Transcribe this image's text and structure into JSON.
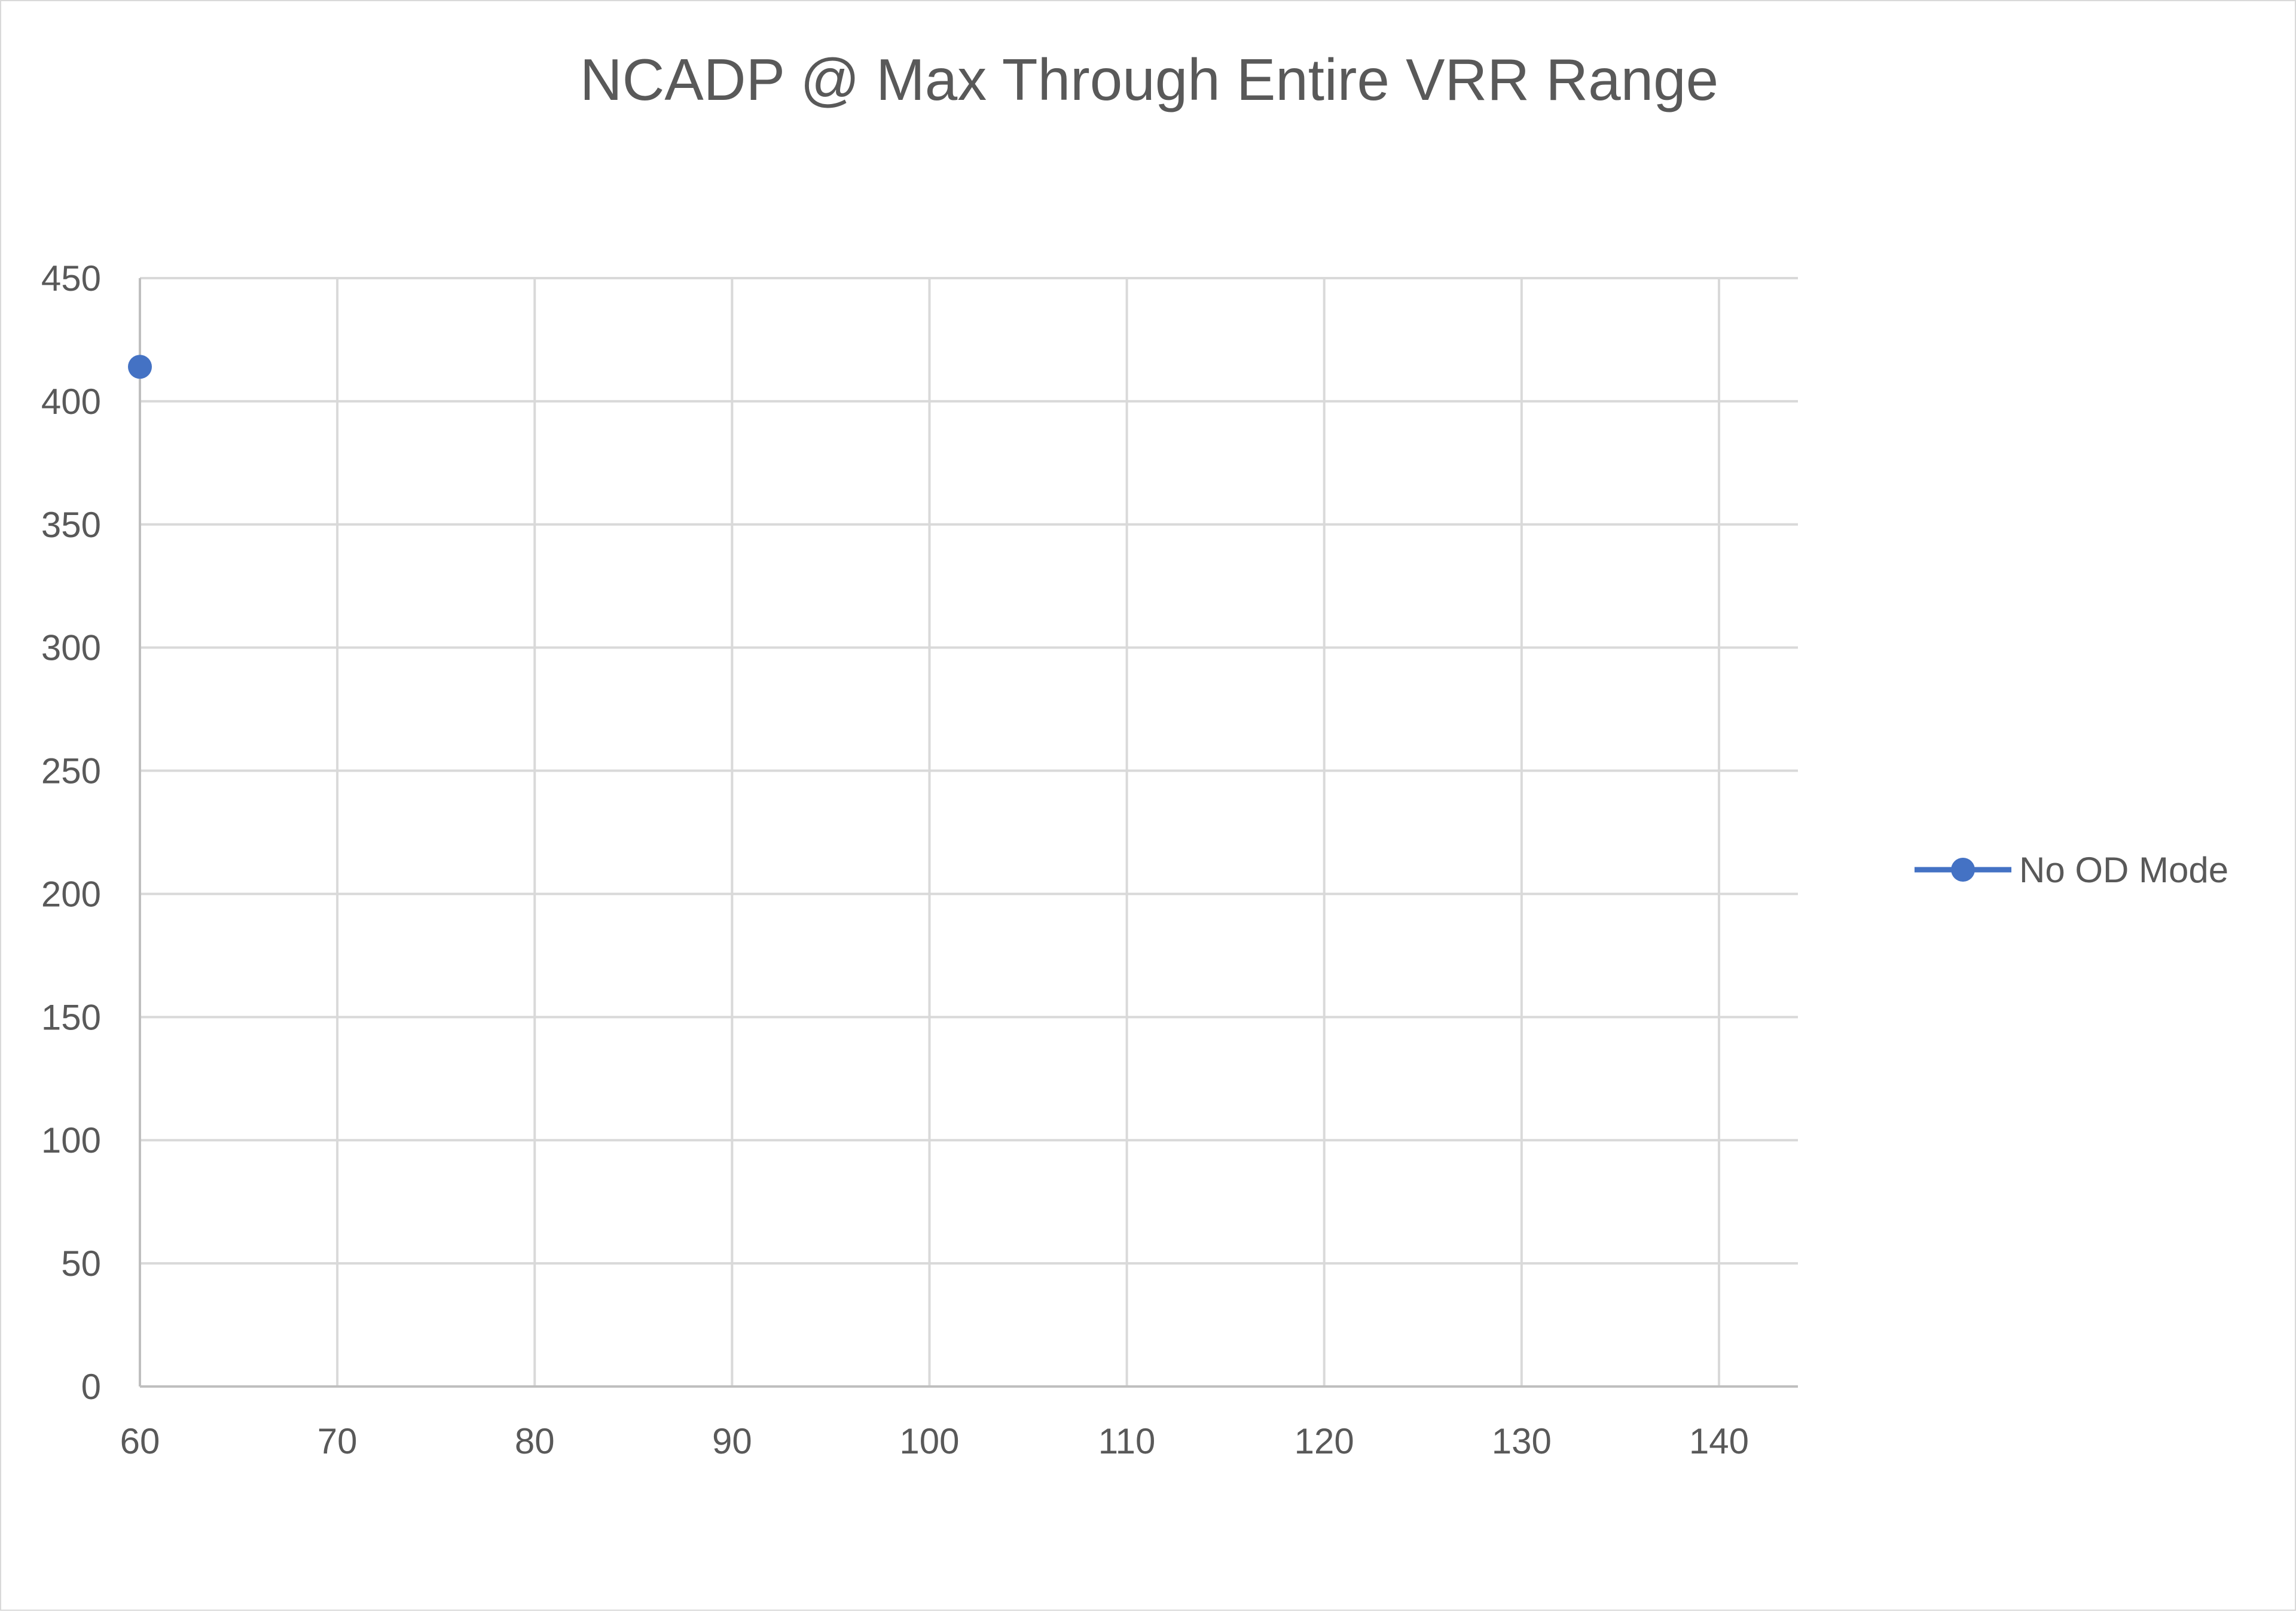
{
  "chart_data": {
    "type": "scatter",
    "title": "NCADP @ Max Through Entire VRR Range",
    "xlabel": "",
    "ylabel": "",
    "xlim": [
      60,
      144
    ],
    "ylim": [
      0,
      450
    ],
    "x_ticks": [
      60,
      70,
      80,
      90,
      100,
      110,
      120,
      130,
      140
    ],
    "y_ticks": [
      0,
      50,
      100,
      150,
      200,
      250,
      300,
      350,
      400,
      450
    ],
    "grid": true,
    "legend_position": "right",
    "series": [
      {
        "name": "No OD Mode",
        "color": "#4472c4",
        "marker": "circle",
        "points": [
          {
            "x": 60,
            "y": 414
          }
        ]
      }
    ]
  }
}
